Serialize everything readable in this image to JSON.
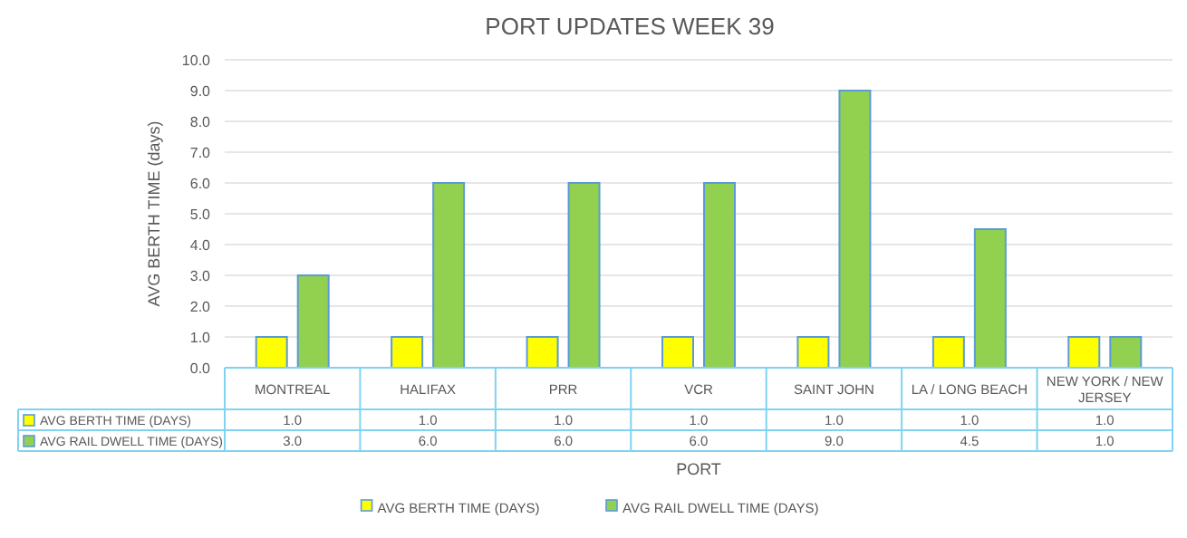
{
  "chart_data": {
    "type": "bar",
    "title": "PORT UPDATES WEEK 39",
    "xlabel": "PORT",
    "ylabel": "AVG BERTH TIME (days)",
    "categories": [
      "MONTREAL",
      "HALIFAX",
      "PRR",
      "VCR",
      "SAINT JOHN",
      "LA / LONG BEACH",
      "NEW YORK / NEW JERSEY"
    ],
    "series": [
      {
        "name": "AVG BERTH TIME (DAYS)",
        "color": "#ffff00",
        "values": [
          1.0,
          1.0,
          1.0,
          1.0,
          1.0,
          1.0,
          1.0
        ],
        "value_labels": [
          "1.0",
          "1.0",
          "1.0",
          "1.0",
          "1.0",
          "1.0",
          "1.0"
        ]
      },
      {
        "name": "AVG RAIL DWELL TIME (DAYS)",
        "color": "#92d050",
        "values": [
          3.0,
          6.0,
          6.0,
          6.0,
          9.0,
          4.5,
          1.0
        ],
        "value_labels": [
          "3.0",
          "6.0",
          "6.0",
          "6.0",
          "9.0",
          "4.5",
          "1.0"
        ]
      }
    ],
    "ylim": [
      0,
      10
    ],
    "yticks": [
      {
        "value": 0,
        "label": "0.0"
      },
      {
        "value": 1,
        "label": "1.0"
      },
      {
        "value": 2,
        "label": "2.0"
      },
      {
        "value": 3,
        "label": "3.0"
      },
      {
        "value": 4,
        "label": "4.0"
      },
      {
        "value": 5,
        "label": "5.0"
      },
      {
        "value": 6,
        "label": "6.0"
      },
      {
        "value": 7,
        "label": "7.0"
      },
      {
        "value": 8,
        "label": "8.0"
      },
      {
        "value": 9,
        "label": "9.0"
      },
      {
        "value": 10,
        "label": "10.0"
      }
    ],
    "grid": "y",
    "legend": "bottom"
  }
}
